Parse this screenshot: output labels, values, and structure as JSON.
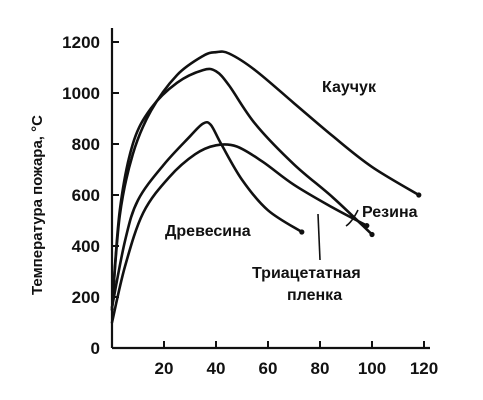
{
  "chart_data": {
    "type": "line",
    "xlabel": "",
    "ylabel": "Температура пожара, °С",
    "xlim": [
      0,
      125
    ],
    "ylim": [
      0,
      1250
    ],
    "x_ticks": [
      20,
      40,
      60,
      80,
      100,
      120
    ],
    "x_tick_labels": [
      "20",
      "40",
      "60",
      "80",
      "100",
      "120"
    ],
    "y_ticks": [
      0,
      200,
      400,
      600,
      800,
      1000,
      1200
    ],
    "y_tick_labels": [
      "0",
      "200",
      "400",
      "600",
      "800",
      "1000",
      "1200"
    ],
    "grid": false,
    "series": [
      {
        "name": "Каучук",
        "points": [
          [
            0,
            150
          ],
          [
            3,
            520
          ],
          [
            8,
            760
          ],
          [
            15,
            930
          ],
          [
            25,
            1070
          ],
          [
            35,
            1145
          ],
          [
            40,
            1160
          ],
          [
            45,
            1155
          ],
          [
            55,
            1090
          ],
          [
            70,
            960
          ],
          [
            85,
            830
          ],
          [
            100,
            710
          ],
          [
            118,
            600
          ]
        ]
      },
      {
        "name": "Резина",
        "points": [
          [
            0,
            150
          ],
          [
            3,
            540
          ],
          [
            8,
            800
          ],
          [
            15,
            940
          ],
          [
            25,
            1040
          ],
          [
            35,
            1090
          ],
          [
            40,
            1085
          ],
          [
            45,
            1030
          ],
          [
            55,
            880
          ],
          [
            70,
            720
          ],
          [
            85,
            590
          ],
          [
            100,
            445
          ]
        ]
      },
      {
        "name": "Древесина",
        "points": [
          [
            0,
            160
          ],
          [
            5,
            420
          ],
          [
            10,
            580
          ],
          [
            20,
            720
          ],
          [
            30,
            830
          ],
          [
            35,
            880
          ],
          [
            38,
            875
          ],
          [
            42,
            800
          ],
          [
            50,
            660
          ],
          [
            60,
            540
          ],
          [
            73,
            455
          ]
        ]
      },
      {
        "name": "Триацетатная пленка",
        "lines": [
          "Триацетатная",
          "пленка"
        ],
        "points": [
          [
            0,
            100
          ],
          [
            5,
            320
          ],
          [
            12,
            530
          ],
          [
            22,
            670
          ],
          [
            32,
            760
          ],
          [
            40,
            795
          ],
          [
            48,
            790
          ],
          [
            58,
            730
          ],
          [
            70,
            640
          ],
          [
            85,
            550
          ],
          [
            98,
            480
          ]
        ]
      }
    ]
  }
}
